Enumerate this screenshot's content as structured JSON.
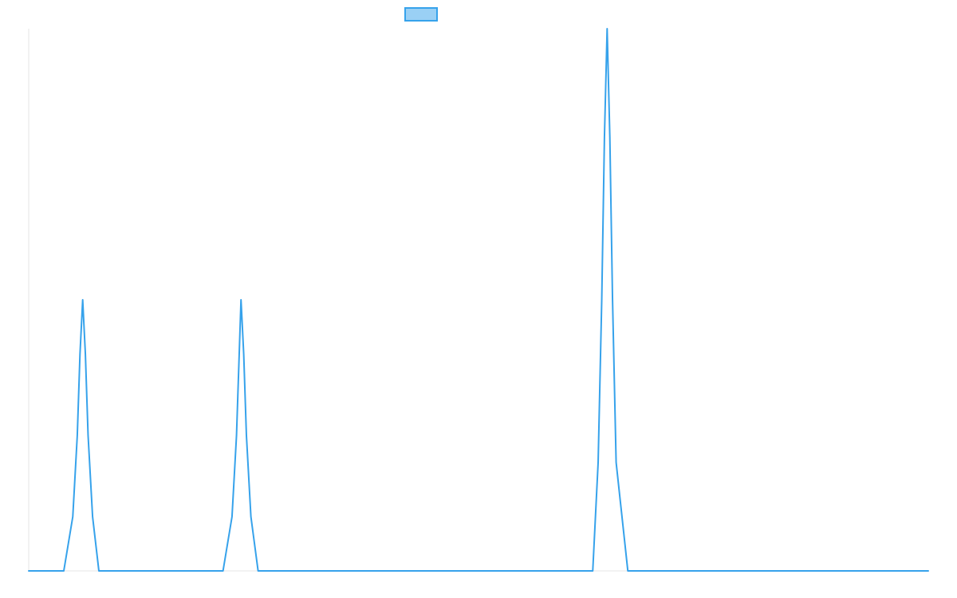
{
  "chart_data": {
    "type": "line",
    "title": "",
    "xlabel": "",
    "ylabel": "",
    "x_range": [
      0,
      1
    ],
    "y_range": [
      0,
      1
    ],
    "grid": false,
    "legend_position": "top-center",
    "series": [
      {
        "name": "",
        "color": "#36a2eb",
        "fill_color": "#9ad0f5",
        "points": [
          [
            0.0,
            0.0
          ],
          [
            0.039,
            0.0
          ],
          [
            0.049,
            0.1
          ],
          [
            0.054,
            0.25
          ],
          [
            0.057,
            0.4
          ],
          [
            0.06,
            0.5
          ],
          [
            0.063,
            0.4
          ],
          [
            0.066,
            0.25
          ],
          [
            0.071,
            0.1
          ],
          [
            0.078,
            0.0
          ],
          [
            0.216,
            0.0
          ],
          [
            0.226,
            0.1
          ],
          [
            0.231,
            0.25
          ],
          [
            0.234,
            0.4
          ],
          [
            0.236,
            0.5
          ],
          [
            0.239,
            0.4
          ],
          [
            0.242,
            0.25
          ],
          [
            0.247,
            0.1
          ],
          [
            0.255,
            0.0
          ],
          [
            0.627,
            0.0
          ],
          [
            0.633,
            0.2
          ],
          [
            0.637,
            0.5
          ],
          [
            0.64,
            0.8
          ],
          [
            0.643,
            1.0
          ],
          [
            0.646,
            0.8
          ],
          [
            0.649,
            0.5
          ],
          [
            0.653,
            0.2
          ],
          [
            0.666,
            0.0
          ],
          [
            1.0,
            0.0
          ]
        ]
      }
    ]
  }
}
